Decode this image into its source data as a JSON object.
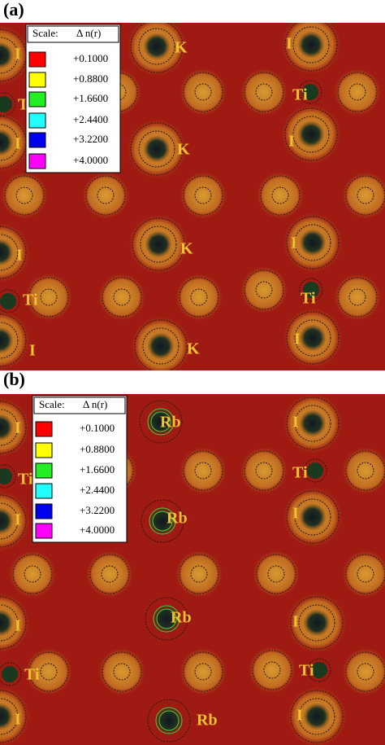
{
  "panels": [
    {
      "label": "(a)",
      "legend": {
        "title": "Scale:",
        "symbol": "Δ n(r)",
        "entries": [
          "+0.1000",
          "+0.8800",
          "+1.6600",
          "+2.4400",
          "+3.2200",
          "+4.0000"
        ],
        "colors": [
          "#ff0000",
          "#ffff00",
          "#22ee22",
          "#22ffff",
          "#0000ee",
          "#ff00ff"
        ]
      },
      "atoms": [
        "I",
        "K",
        "I",
        "Ti",
        "Ti",
        "I",
        "K",
        "I",
        "I",
        "K",
        "I",
        "Ti",
        "Ti",
        "I",
        "K",
        "I"
      ]
    },
    {
      "label": "(b)",
      "legend": {
        "title": "Scale:",
        "symbol": "Δ n(r)",
        "entries": [
          "+0.1000",
          "+0.8800",
          "+1.6600",
          "+2.4400",
          "+3.2200",
          "+4.0000"
        ],
        "colors": [
          "#ff0000",
          "#ffff00",
          "#22ee22",
          "#22ffff",
          "#0000ee",
          "#ff00ff"
        ]
      },
      "atoms": [
        "I",
        "Rb",
        "I",
        "Ti",
        "Ti",
        "I",
        "Rb",
        "I",
        "I",
        "Rb",
        "I",
        "Ti",
        "Ti",
        "I",
        "Rb",
        "I"
      ]
    }
  ]
}
